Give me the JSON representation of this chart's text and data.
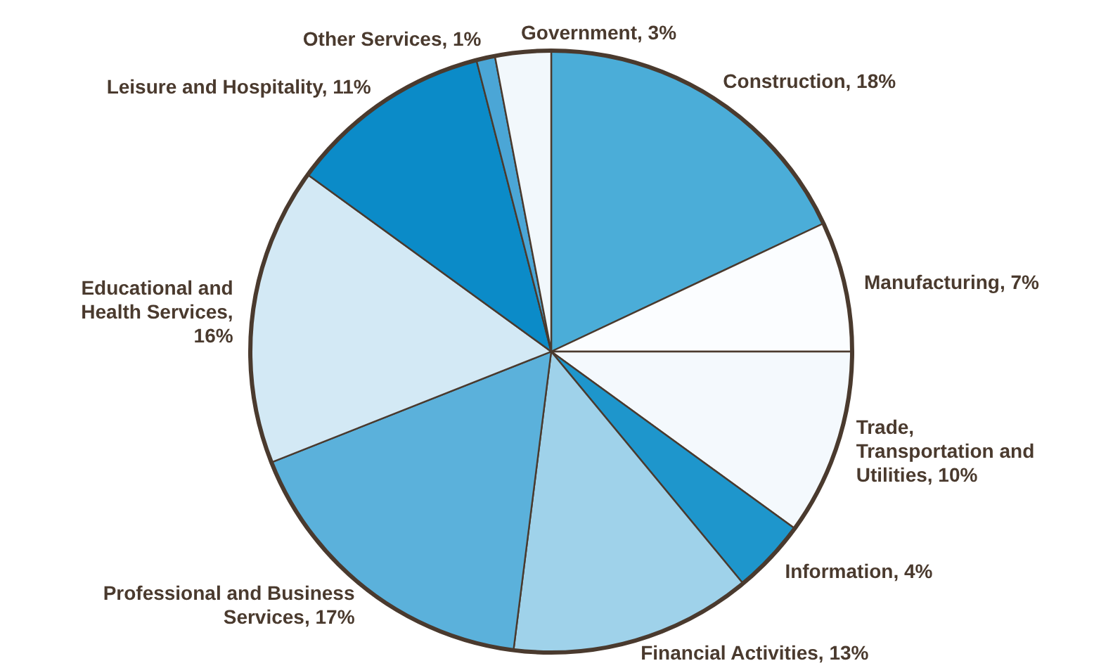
{
  "chart_data": {
    "type": "pie",
    "categories": [
      "Construction, 18%",
      "Manufacturing, 7%",
      "Trade, Transportation and Utilities, 10%",
      "Information, 4%",
      "Financial Activities, 13%",
      "Professional and Business Services, 17%",
      "Educational and Health Services, 16%",
      "Leisure and Hospitality, 11%",
      "Other Services, 1%",
      "Government, 3%"
    ],
    "values": [
      18,
      7,
      10,
      4,
      13,
      17,
      16,
      11,
      1,
      3
    ],
    "colors": [
      "#4badd8",
      "#fbfdff",
      "#f4f9fd",
      "#1e96cc",
      "#9fd2ea",
      "#5bb1db",
      "#d3e9f5",
      "#0b8bc8",
      "#4ba6d6",
      "#f2f8fc"
    ]
  }
}
